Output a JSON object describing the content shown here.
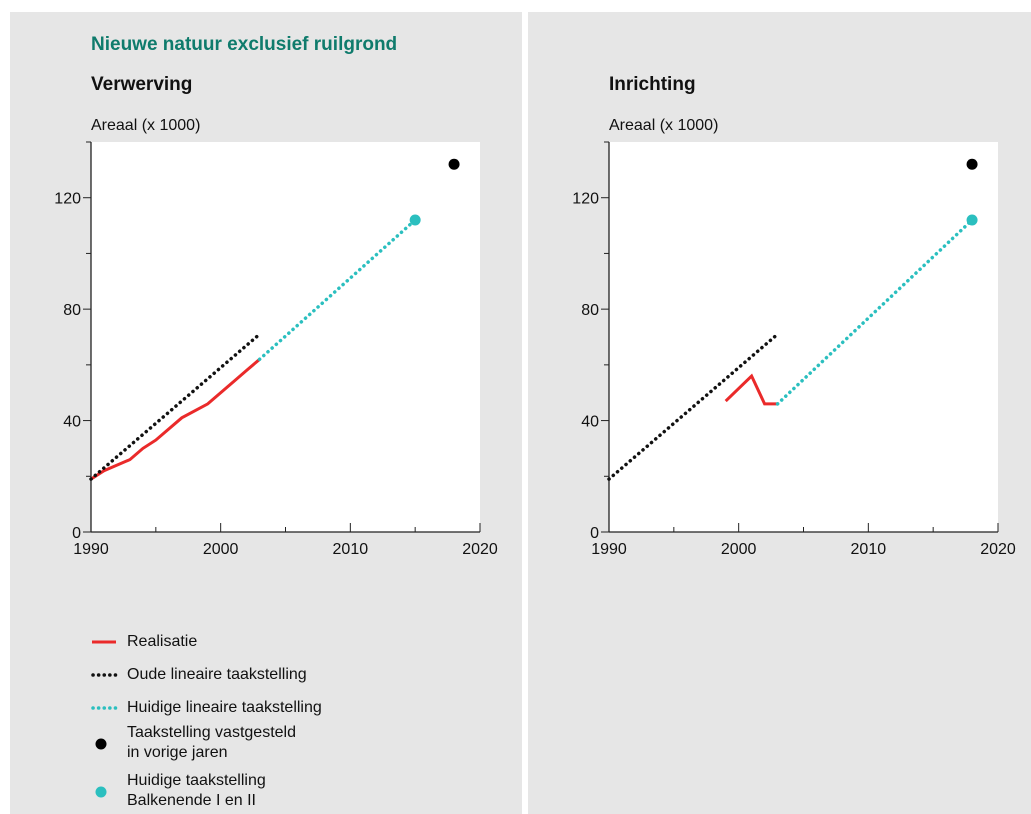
{
  "main_title": "Nieuwe natuur exclusief ruilgrond",
  "colors": {
    "realisatie": "#ea2a2a",
    "oude": "#111111",
    "huidige": "#2bbfbf",
    "vastgesteld": "#000000"
  },
  "legend": [
    {
      "label": "Realisatie",
      "style": "solid-line",
      "color": "#ea2a2a"
    },
    {
      "label": "Oude lineaire taakstelling",
      "style": "dotted-line",
      "color": "#111111"
    },
    {
      "label": "Huidige lineaire taakstelling",
      "style": "dotted-line",
      "color": "#2bbfbf"
    },
    {
      "label": "Taakstelling vastgesteld\nin vorige jaren",
      "style": "dot",
      "color": "#000000"
    },
    {
      "label": "Huidige taakstelling\nBalkenende I en II",
      "style": "dot",
      "color": "#2bbfbf"
    }
  ],
  "chart_data": [
    {
      "type": "line",
      "title": "Verwerving",
      "ylabel": "Areaal (x 1000)",
      "xlim": [
        1990,
        2020
      ],
      "ylim": [
        0,
        140
      ],
      "xticks": [
        1990,
        2000,
        2010,
        2020
      ],
      "yticks": [
        0,
        40,
        80,
        120
      ],
      "grid": false,
      "series": [
        {
          "name": "Realisatie",
          "style": "solid",
          "color": "#ea2a2a",
          "x": [
            1990,
            1991,
            1993,
            1994,
            1995,
            1997,
            1999,
            2001,
            2002,
            2003
          ],
          "y": [
            19,
            22,
            26,
            30,
            33,
            41,
            46,
            54,
            58,
            62
          ]
        },
        {
          "name": "Oude lineaire taakstelling",
          "style": "dotted",
          "color": "#111111",
          "x": [
            1990,
            2003
          ],
          "y": [
            19,
            71
          ]
        },
        {
          "name": "Huidige lineaire taakstelling",
          "style": "dotted",
          "color": "#2bbfbf",
          "x": [
            2003,
            2015
          ],
          "y": [
            62,
            112
          ]
        }
      ],
      "points": [
        {
          "name": "Huidige taakstelling Balkenende I en II",
          "x": 2015,
          "y": 112,
          "color": "#2bbfbf"
        },
        {
          "name": "Taakstelling vastgesteld in vorige jaren",
          "x": 2018,
          "y": 132,
          "color": "#000000"
        }
      ]
    },
    {
      "type": "line",
      "title": "Inrichting",
      "ylabel": "Areaal (x 1000)",
      "xlim": [
        1990,
        2020
      ],
      "ylim": [
        0,
        140
      ],
      "xticks": [
        1990,
        2000,
        2010,
        2020
      ],
      "yticks": [
        0,
        40,
        80,
        120
      ],
      "grid": false,
      "series": [
        {
          "name": "Realisatie",
          "style": "solid",
          "color": "#ea2a2a",
          "x": [
            1999,
            2001,
            2002,
            2003
          ],
          "y": [
            47,
            56,
            46,
            46
          ]
        },
        {
          "name": "Oude lineaire taakstelling",
          "style": "dotted",
          "color": "#111111",
          "x": [
            1990,
            2003
          ],
          "y": [
            19,
            71
          ]
        },
        {
          "name": "Huidige lineaire taakstelling",
          "style": "dotted",
          "color": "#2bbfbf",
          "x": [
            2003,
            2018
          ],
          "y": [
            46,
            112
          ]
        }
      ],
      "points": [
        {
          "name": "Huidige taakstelling Balkenende I en II",
          "x": 2018,
          "y": 112,
          "color": "#2bbfbf"
        },
        {
          "name": "Taakstelling vastgesteld in vorige jaren",
          "x": 2018,
          "y": 132,
          "color": "#000000"
        }
      ]
    }
  ]
}
